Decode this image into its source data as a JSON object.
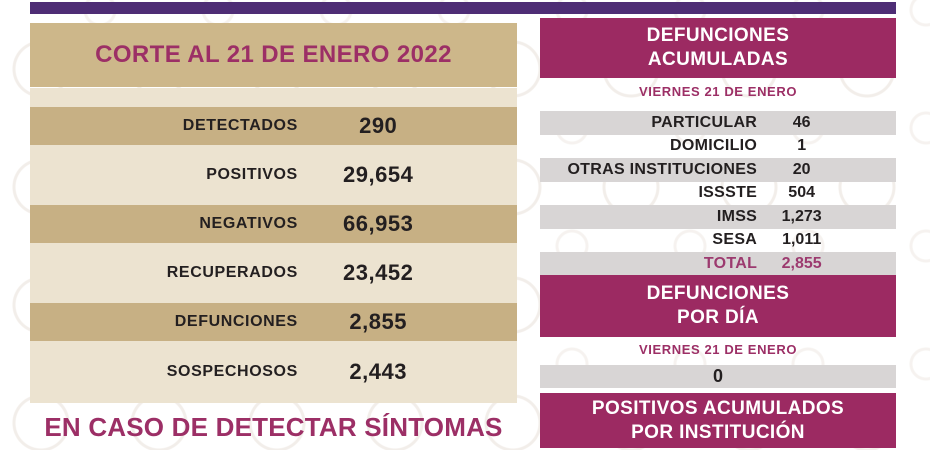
{
  "theme": {
    "top_bar_purple": "#4e2d75",
    "magenta_block": "#9c2a62",
    "magenta_text": "#9c2f66",
    "tan_header": "#cdb78a",
    "tan_row": "#c7b084",
    "beige_row": "#ece3d0",
    "gray_row": "#d8d5d5",
    "text_dark": "#231f20"
  },
  "left_panel": {
    "title": "CORTE AL 21 DE ENERO 2022",
    "rows": [
      {
        "label": "DETECTADOS",
        "value": "290"
      },
      {
        "label": "POSITIVOS",
        "value": "29,654"
      },
      {
        "label": "NEGATIVOS",
        "value": "66,953"
      },
      {
        "label": "RECUPERADOS",
        "value": "23,452"
      },
      {
        "label": "DEFUNCIONES",
        "value": "2,855"
      },
      {
        "label": "SOSPECHOSOS",
        "value": "2,443"
      }
    ],
    "footer": "EN CASO DE DETECTAR SÍNTOMAS"
  },
  "right_panel": {
    "deaths_accumulated": {
      "title_line1": "DEFUNCIONES",
      "title_line2": "ACUMULADAS",
      "date": "VIERNES 21 DE ENERO",
      "rows": [
        {
          "label": "PARTICULAR",
          "value": "46"
        },
        {
          "label": "DOMICILIO",
          "value": "1"
        },
        {
          "label": "OTRAS INSTITUCIONES",
          "value": "20"
        },
        {
          "label": "ISSSTE",
          "value": "504"
        },
        {
          "label": "IMSS",
          "value": "1,273"
        },
        {
          "label": "SESA",
          "value": "1,011"
        },
        {
          "label": "TOTAL",
          "value": "2,855"
        }
      ]
    },
    "deaths_per_day": {
      "title_line1": "DEFUNCIONES",
      "title_line2": "POR DÍA",
      "date": "VIERNES 21 DE ENERO",
      "value": "0"
    },
    "positives_by_institution": {
      "title_line1": "POSITIVOS ACUMULADOS",
      "title_line2": "POR INSTITUCIÓN"
    }
  }
}
